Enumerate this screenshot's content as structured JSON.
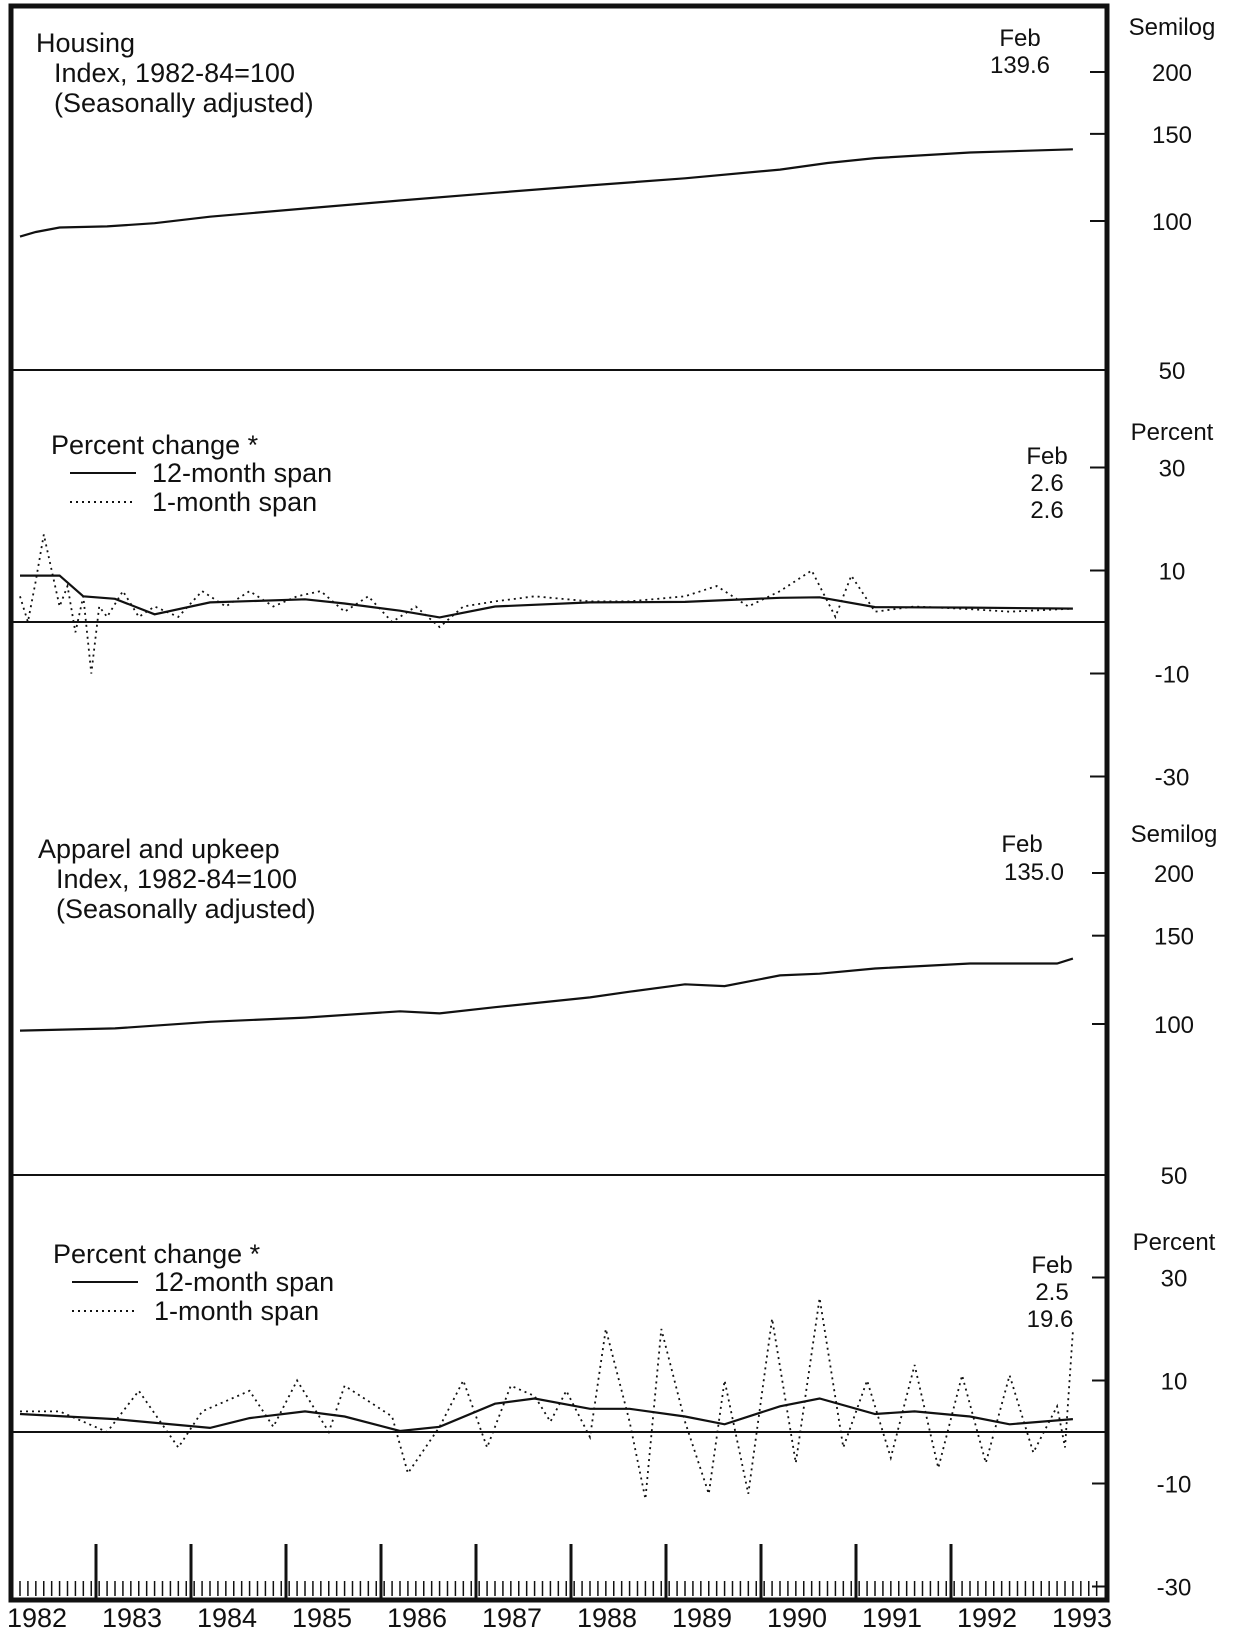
{
  "chart_data": [
    {
      "type": "line",
      "title": "Housing",
      "subtitle": [
        "Index, 1982-84=100",
        "(Seasonally adjusted)"
      ],
      "scale_label": "Semilog",
      "log_scale": true,
      "y_ticks": [
        "200",
        "150",
        "100",
        "50"
      ],
      "ylim": [
        50,
        200
      ],
      "latest_label": [
        "Feb",
        "139.6"
      ],
      "x_range": [
        "1982-01",
        "1993-02"
      ],
      "series": [
        {
          "style": "solid",
          "points": [
            [
              "1982-01",
              93
            ],
            [
              "1982-03",
              95
            ],
            [
              "1982-06",
              97
            ],
            [
              "1982-12",
              97.5
            ],
            [
              "1983-06",
              99
            ],
            [
              "1984-01",
              102
            ],
            [
              "1985-01",
              106
            ],
            [
              "1986-01",
              110
            ],
            [
              "1987-01",
              114
            ],
            [
              "1988-01",
              118
            ],
            [
              "1989-01",
              122
            ],
            [
              "1990-01",
              127
            ],
            [
              "1990-07",
              131
            ],
            [
              "1991-01",
              134
            ],
            [
              "1992-01",
              137.5
            ],
            [
              "1993-02",
              139.6
            ]
          ]
        }
      ]
    },
    {
      "type": "line",
      "title": "Percent change *",
      "scale_label": "Percent",
      "y_ticks": [
        "30",
        "10",
        "-10",
        "-30"
      ],
      "ylim": [
        -30,
        30
      ],
      "latest_label": [
        "Feb",
        "2.6",
        "2.6"
      ],
      "legend": [
        "12-month span",
        "1-month span"
      ],
      "series": [
        {
          "name": "12-month span",
          "style": "solid",
          "points": [
            [
              "1982-01",
              9
            ],
            [
              "1982-06",
              9
            ],
            [
              "1982-09",
              5
            ],
            [
              "1983-01",
              4.5
            ],
            [
              "1983-06",
              1.5
            ],
            [
              "1984-01",
              3.8
            ],
            [
              "1985-01",
              4.4
            ],
            [
              "1985-06",
              3.6
            ],
            [
              "1986-01",
              2.2
            ],
            [
              "1986-06",
              0.9
            ],
            [
              "1987-01",
              3.0
            ],
            [
              "1988-01",
              3.8
            ],
            [
              "1989-01",
              3.9
            ],
            [
              "1990-01",
              4.7
            ],
            [
              "1990-06",
              4.8
            ],
            [
              "1991-01",
              2.9
            ],
            [
              "1992-01",
              2.8
            ],
            [
              "1993-02",
              2.6
            ]
          ]
        },
        {
          "name": "1-month span",
          "style": "dotted",
          "points": [
            [
              "1982-01",
              5
            ],
            [
              "1982-02",
              0
            ],
            [
              "1982-03",
              8
            ],
            [
              "1982-04",
              17
            ],
            [
              "1982-05",
              10
            ],
            [
              "1982-06",
              3
            ],
            [
              "1982-07",
              7
            ],
            [
              "1982-08",
              -2
            ],
            [
              "1982-09",
              5
            ],
            [
              "1982-10",
              -10
            ],
            [
              "1982-11",
              3
            ],
            [
              "1982-12",
              1
            ],
            [
              "1983-02",
              6
            ],
            [
              "1983-04",
              1
            ],
            [
              "1983-06",
              3
            ],
            [
              "1983-09",
              1
            ],
            [
              "1983-12",
              6
            ],
            [
              "1984-03",
              3
            ],
            [
              "1984-06",
              6
            ],
            [
              "1984-09",
              3
            ],
            [
              "1984-12",
              5
            ],
            [
              "1985-03",
              6
            ],
            [
              "1985-06",
              2
            ],
            [
              "1985-09",
              5
            ],
            [
              "1985-12",
              0
            ],
            [
              "1986-03",
              3
            ],
            [
              "1986-06",
              -1
            ],
            [
              "1986-09",
              3
            ],
            [
              "1987-01",
              4
            ],
            [
              "1987-06",
              5
            ],
            [
              "1988-01",
              4
            ],
            [
              "1988-06",
              4
            ],
            [
              "1989-01",
              5
            ],
            [
              "1989-05",
              7
            ],
            [
              "1989-09",
              3
            ],
            [
              "1990-01",
              6
            ],
            [
              "1990-05",
              10
            ],
            [
              "1990-08",
              1
            ],
            [
              "1990-10",
              9
            ],
            [
              "1991-01",
              2
            ],
            [
              "1991-06",
              3
            ],
            [
              "1992-01",
              2.5
            ],
            [
              "1992-06",
              2
            ],
            [
              "1993-02",
              2.6
            ]
          ]
        }
      ]
    },
    {
      "type": "line",
      "title": "Apparel and upkeep",
      "subtitle": [
        "Index, 1982-84=100",
        "(Seasonally adjusted)"
      ],
      "scale_label": "Semilog",
      "log_scale": true,
      "y_ticks": [
        "200",
        "150",
        "100",
        "50"
      ],
      "ylim": [
        50,
        200
      ],
      "latest_label": [
        "Feb",
        "135.0"
      ],
      "x_range": [
        "1982-01",
        "1993-02"
      ],
      "series": [
        {
          "style": "solid",
          "points": [
            [
              "1982-01",
              97
            ],
            [
              "1983-01",
              98
            ],
            [
              "1984-01",
              101
            ],
            [
              "1985-01",
              103
            ],
            [
              "1986-01",
              106
            ],
            [
              "1986-06",
              105
            ],
            [
              "1987-01",
              108
            ],
            [
              "1988-01",
              113
            ],
            [
              "1988-06",
              116
            ],
            [
              "1989-01",
              120
            ],
            [
              "1989-06",
              119
            ],
            [
              "1990-01",
              125
            ],
            [
              "1990-06",
              126
            ],
            [
              "1991-01",
              129
            ],
            [
              "1992-01",
              132
            ],
            [
              "1992-12",
              132
            ],
            [
              "1993-02",
              135.0
            ]
          ]
        }
      ]
    },
    {
      "type": "line",
      "title": "Percent change *",
      "scale_label": "Percent",
      "y_ticks": [
        "30",
        "10",
        "-10",
        "-30"
      ],
      "ylim": [
        -30,
        30
      ],
      "latest_label": [
        "Feb",
        "2.5",
        "19.6"
      ],
      "legend": [
        "12-month span",
        "1-month span"
      ],
      "series": [
        {
          "name": "12-month span",
          "style": "solid",
          "points": [
            [
              "1982-01",
              3.5
            ],
            [
              "1983-01",
              2.5
            ],
            [
              "1984-01",
              0.8
            ],
            [
              "1984-06",
              2.7
            ],
            [
              "1985-01",
              4
            ],
            [
              "1985-06",
              3
            ],
            [
              "1986-01",
              0.2
            ],
            [
              "1986-06",
              1
            ],
            [
              "1987-01",
              5.5
            ],
            [
              "1987-06",
              6.5
            ],
            [
              "1988-01",
              4.5
            ],
            [
              "1988-06",
              4.5
            ],
            [
              "1989-01",
              3
            ],
            [
              "1989-06",
              1.5
            ],
            [
              "1990-01",
              5
            ],
            [
              "1990-06",
              6.5
            ],
            [
              "1991-01",
              3.5
            ],
            [
              "1991-06",
              4
            ],
            [
              "1992-01",
              3
            ],
            [
              "1992-06",
              1.5
            ],
            [
              "1993-02",
              2.5
            ]
          ]
        },
        {
          "name": "1-month span",
          "style": "dotted",
          "points": [
            [
              "1982-01",
              4
            ],
            [
              "1982-06",
              4
            ],
            [
              "1982-12",
              0
            ],
            [
              "1983-04",
              8
            ],
            [
              "1983-09",
              -3
            ],
            [
              "1983-12",
              4
            ],
            [
              "1984-06",
              8
            ],
            [
              "1984-09",
              1
            ],
            [
              "1984-12",
              10
            ],
            [
              "1985-04",
              0
            ],
            [
              "1985-06",
              9
            ],
            [
              "1985-12",
              3
            ],
            [
              "1986-02",
              -8
            ],
            [
              "1986-06",
              1
            ],
            [
              "1986-09",
              10
            ],
            [
              "1986-12",
              -3
            ],
            [
              "1987-03",
              9
            ],
            [
              "1987-06",
              7
            ],
            [
              "1987-08",
              2
            ],
            [
              "1987-10",
              8
            ],
            [
              "1988-01",
              -1
            ],
            [
              "1988-03",
              20
            ],
            [
              "1988-06",
              2
            ],
            [
              "1988-08",
              -13
            ],
            [
              "1988-10",
              20
            ],
            [
              "1989-01",
              2
            ],
            [
              "1989-04",
              -12
            ],
            [
              "1989-06",
              10
            ],
            [
              "1989-09",
              -12
            ],
            [
              "1989-12",
              22
            ],
            [
              "1990-03",
              -6
            ],
            [
              "1990-06",
              26
            ],
            [
              "1990-09",
              -3
            ],
            [
              "1990-12",
              10
            ],
            [
              "1991-03",
              -5
            ],
            [
              "1991-06",
              13
            ],
            [
              "1991-09",
              -7
            ],
            [
              "1991-12",
              11
            ],
            [
              "1992-03",
              -6
            ],
            [
              "1992-06",
              11
            ],
            [
              "1992-09",
              -4
            ],
            [
              "1992-12",
              5
            ],
            [
              "1993-01",
              -3
            ],
            [
              "1993-02",
              19.6
            ]
          ]
        }
      ]
    }
  ],
  "x_axis": {
    "years": [
      "1982",
      "1983",
      "1984",
      "1985",
      "1986",
      "1987",
      "1988",
      "1989",
      "1990",
      "1991",
      "1992",
      "1993"
    ],
    "minor_ticks_per_year": 12
  }
}
